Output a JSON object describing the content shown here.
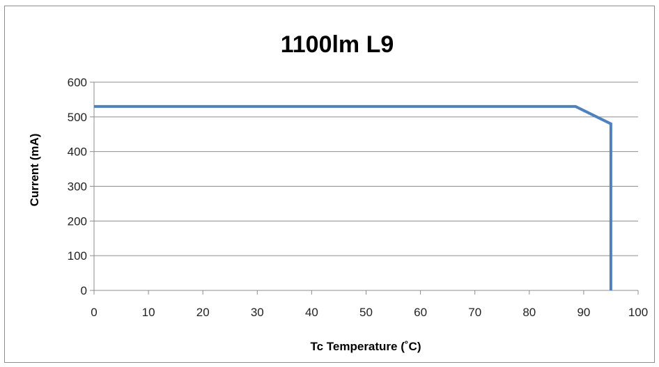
{
  "chart_data": {
    "type": "line",
    "title": "1100lm L9",
    "xlabel": "Tc Temperature (˚C)",
    "ylabel": "Current (mA)",
    "xlim": [
      0,
      100
    ],
    "ylim": [
      0,
      600
    ],
    "xticks": [
      "0",
      "10",
      "20",
      "30",
      "40",
      "50",
      "60",
      "70",
      "80",
      "90",
      "100"
    ],
    "yticks": [
      "0",
      "100",
      "200",
      "300",
      "400",
      "500",
      "600"
    ],
    "grid": "horizontal",
    "legend": "none",
    "series": [
      {
        "color": "#4f81bd",
        "points": [
          [
            0,
            530
          ],
          [
            88.5,
            530
          ],
          [
            95,
            480
          ],
          [
            95,
            0
          ]
        ]
      }
    ]
  }
}
